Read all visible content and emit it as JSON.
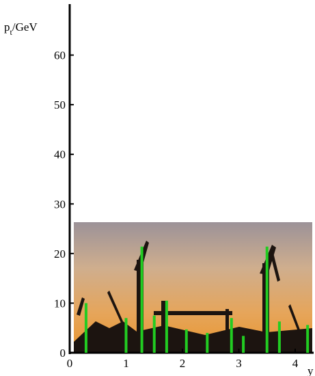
{
  "chart_data": {
    "type": "bar",
    "ylabel": {
      "base": "p",
      "sub": "t",
      "rest": "/GeV"
    },
    "xlabel": "y",
    "x": [
      0.29,
      1.0,
      1.28,
      1.5,
      1.72,
      2.07,
      2.44,
      2.87,
      3.08,
      3.5,
      3.72,
      4.22
    ],
    "values": [
      10,
      7,
      21.4,
      7.5,
      10.5,
      4.7,
      4,
      7,
      3.4,
      21.4,
      6.3,
      5.6
    ],
    "color": "#22cc22",
    "xlim": [
      0,
      4.3
    ],
    "xticks": [
      0,
      1,
      2,
      3,
      4
    ],
    "ylim": [
      0,
      70
    ],
    "yticks": [
      0,
      10,
      20,
      30,
      40,
      50,
      60
    ]
  }
}
